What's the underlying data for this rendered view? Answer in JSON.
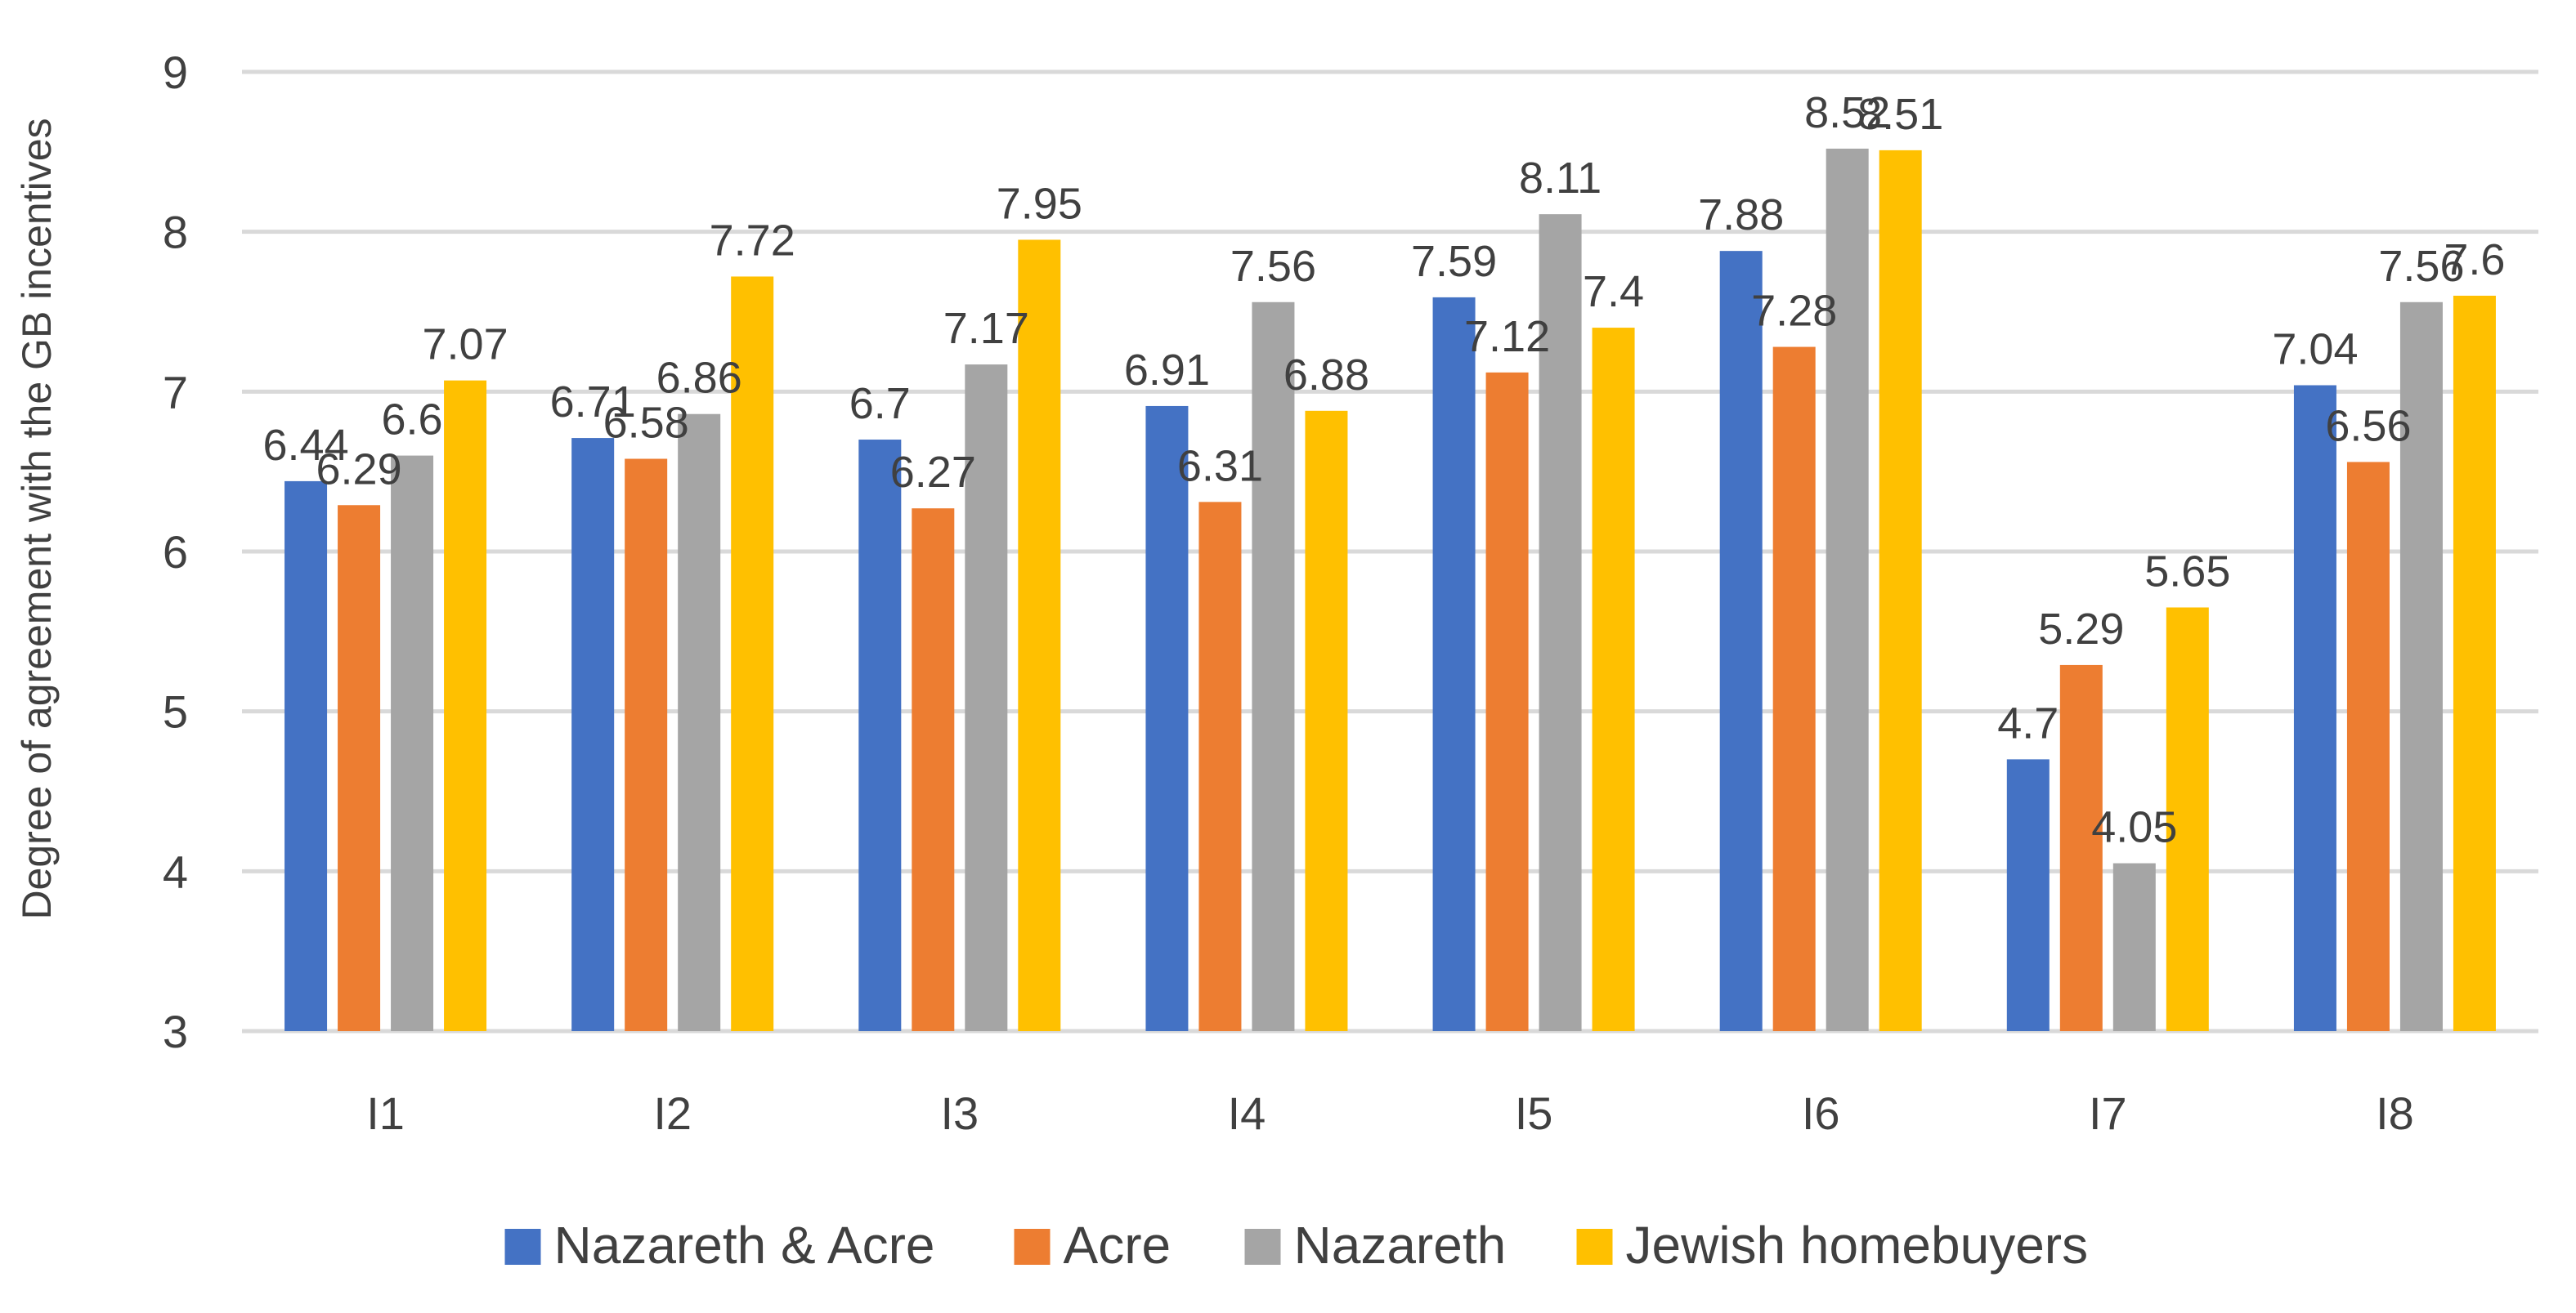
{
  "chart_data": {
    "type": "bar",
    "ylabel": "Degree of agreement with the GB incentives",
    "xlabel": "",
    "ylim": [
      3,
      9
    ],
    "yticks": [
      3,
      4,
      5,
      6,
      7,
      8,
      9
    ],
    "grid": true,
    "legend_position": "bottom",
    "categories": [
      "I1",
      "I2",
      "I3",
      "I4",
      "I5",
      "I6",
      "I7",
      "I8"
    ],
    "series": [
      {
        "name": "Nazareth & Acre",
        "color": "#4472C4",
        "values": [
          6.44,
          6.71,
          6.7,
          6.91,
          7.59,
          7.88,
          4.7,
          7.04
        ],
        "labels": [
          "6.44",
          "6.71",
          "6.7",
          "6.91",
          "7.59",
          "7.88",
          "4.7",
          "7.04"
        ]
      },
      {
        "name": "Acre",
        "color": "#ED7D31",
        "values": [
          6.29,
          6.58,
          6.27,
          6.31,
          7.12,
          7.28,
          5.29,
          6.56
        ],
        "labels": [
          "6.29",
          "6.58",
          "6.27",
          "6.31",
          "7.12",
          "7.28",
          "5.29",
          "6.56"
        ]
      },
      {
        "name": "Nazareth",
        "color": "#A5A5A5",
        "values": [
          6.6,
          6.86,
          7.17,
          7.56,
          8.11,
          8.52,
          4.05,
          7.56
        ],
        "labels": [
          "6.6",
          "6.86",
          "7.17",
          "7.56",
          "8.11",
          "8.52",
          "4.05",
          "7.56"
        ]
      },
      {
        "name": "Jewish homebuyers",
        "color": "#FFC000",
        "values": [
          7.07,
          7.72,
          7.95,
          6.88,
          7.4,
          8.51,
          5.65,
          7.6
        ],
        "labels": [
          "7.07",
          "7.72",
          "7.95",
          "6.88",
          "7.4",
          "8.51",
          "5.65",
          "7.6"
        ]
      }
    ]
  }
}
